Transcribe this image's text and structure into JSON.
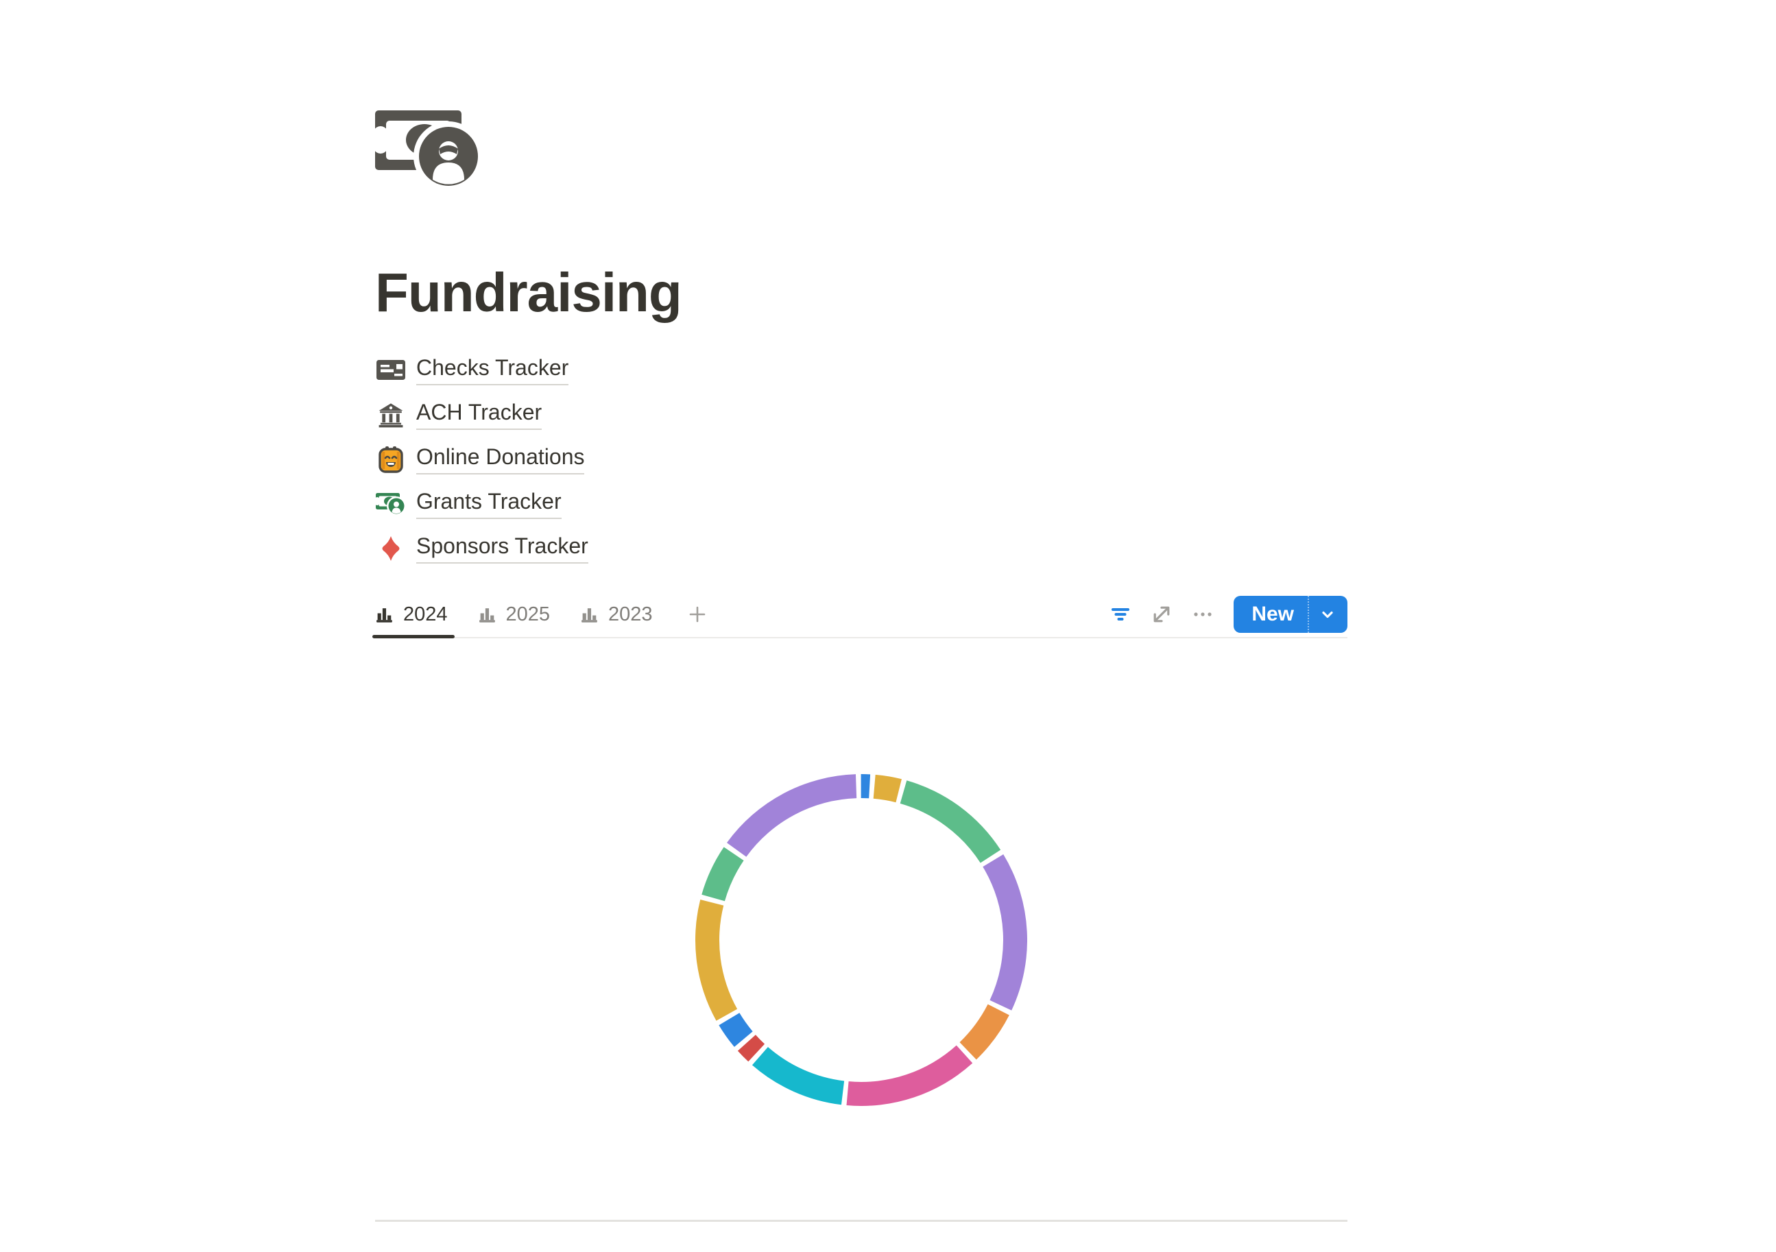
{
  "page": {
    "title": "Fundraising",
    "icon": "banknote-portrait-icon"
  },
  "links": [
    {
      "label": "Checks Tracker",
      "icon": "cheque-card-icon"
    },
    {
      "label": "ACH Tracker",
      "icon": "bank-building-icon"
    },
    {
      "label": "Online Donations",
      "icon": "robot-face-icon"
    },
    {
      "label": "Grants Tracker",
      "icon": "green-banknote-icon"
    },
    {
      "label": "Sponsors Tracker",
      "icon": "red-diamond-icon"
    }
  ],
  "view_tabs": {
    "tabs": [
      {
        "label": "2024",
        "icon": "bar-chart-icon",
        "active": true
      },
      {
        "label": "2025",
        "icon": "bar-chart-icon",
        "active": false
      },
      {
        "label": "2023",
        "icon": "bar-chart-icon",
        "active": false
      }
    ],
    "add_view_icon": "plus-icon"
  },
  "toolbar": {
    "filter_icon": "filter-lines-icon",
    "expand_icon": "expand-diagonal-icon",
    "more_icon": "ellipsis-icon",
    "new_button": {
      "label": "New",
      "dropdown_icon": "chevron-down-icon"
    }
  },
  "colors": {
    "accent_blue": "#2383e2",
    "text": "#37352f",
    "muted_text": "#7f7d79",
    "divider": "#e3e2df",
    "icon_gray": "#55534e"
  },
  "chart_data": {
    "type": "pie",
    "style": "donut",
    "title": "",
    "legend": "none",
    "data_labels_visible": false,
    "start_angle": -1,
    "gap_degrees": 1.8,
    "outer_radius": 242,
    "inner_radius": 207,
    "segments": [
      {
        "name": "segment-1",
        "color": "#2e86e0",
        "degrees": 5,
        "percent": 1.4
      },
      {
        "name": "segment-2",
        "color": "#e0ae3c",
        "degrees": 11,
        "percent": 3.1
      },
      {
        "name": "segment-3",
        "color": "#5dbd8a",
        "degrees": 43,
        "percent": 11.9
      },
      {
        "name": "segment-4",
        "color": "#a183d9",
        "degrees": 58,
        "percent": 16.1
      },
      {
        "name": "segment-5",
        "color": "#ea9345",
        "degrees": 21,
        "percent": 5.8
      },
      {
        "name": "segment-6",
        "color": "#de5d9d",
        "degrees": 49,
        "percent": 13.6
      },
      {
        "name": "segment-7",
        "color": "#16b8cd",
        "degrees": 36,
        "percent": 10.0
      },
      {
        "name": "segment-8",
        "color": "#d44c47",
        "degrees": 7,
        "percent": 1.9
      },
      {
        "name": "segment-9",
        "color": "#2e86e0",
        "degrees": 11,
        "percent": 3.1
      },
      {
        "name": "segment-10",
        "color": "#e0ae3c",
        "degrees": 45,
        "percent": 12.5
      },
      {
        "name": "segment-11",
        "color": "#5dbd8a",
        "degrees": 20,
        "percent": 5.6
      },
      {
        "name": "segment-12",
        "color": "#a183d9",
        "degrees": 54,
        "percent": 15.0
      }
    ]
  }
}
